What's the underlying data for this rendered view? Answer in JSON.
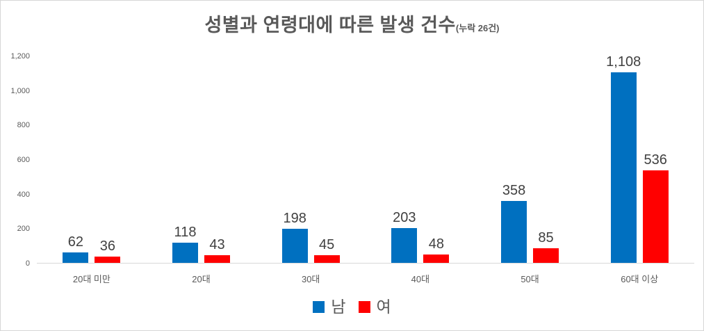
{
  "frame": {
    "background": "#ffffff",
    "border_color": "#d6d6d6"
  },
  "title": {
    "text": "성별과 연령대에 따른 발생 건수",
    "suffix": "(누락 26건)"
  },
  "colors": {
    "male_series": "#0070C0",
    "female_series": "#FF0000",
    "title_text": "#595959",
    "axis_text": "#595959",
    "data_label_text": "#404040",
    "axis_line": "#d9d9d9"
  },
  "chart_data": {
    "type": "bar",
    "title": "성별과 연령대에 따른 발생 건수(누락 26건)",
    "xlabel": "",
    "ylabel": "",
    "categories": [
      "20대 미만",
      "20대",
      "30대",
      "40대",
      "50대",
      "60대 이상"
    ],
    "series": [
      {
        "name": "남",
        "color": "#0070C0",
        "values": [
          62,
          118,
          198,
          203,
          358,
          1108
        ]
      },
      {
        "name": "여",
        "color": "#FF0000",
        "values": [
          36,
          43,
          45,
          48,
          85,
          536
        ]
      }
    ],
    "ylim": [
      0,
      1200
    ],
    "yticks": [
      0,
      200,
      400,
      600,
      800,
      1000,
      1200
    ],
    "grid": false,
    "data_labels": true,
    "legend_position": "bottom"
  }
}
